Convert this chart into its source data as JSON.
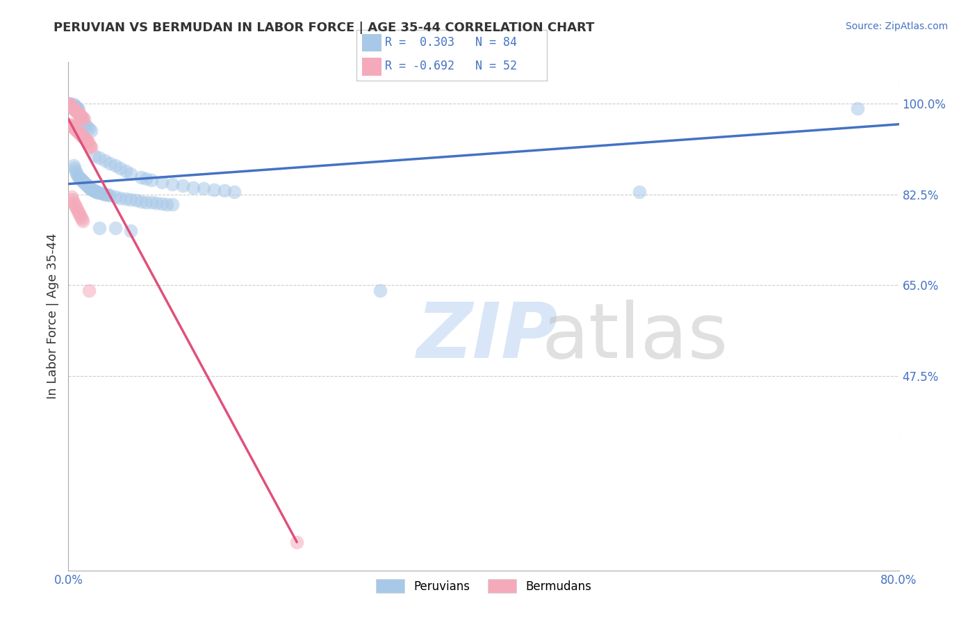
{
  "title": "PERUVIAN VS BERMUDAN IN LABOR FORCE | AGE 35-44 CORRELATION CHART",
  "source_text": "Source: ZipAtlas.com",
  "ylabel_label": "In Labor Force | Age 35-44",
  "blue_color": "#A8C8E8",
  "pink_color": "#F4AABB",
  "blue_line_color": "#4472C4",
  "pink_line_color": "#E0507A",
  "xlim": [
    0.0,
    0.8
  ],
  "ylim": [
    0.1,
    1.08
  ],
  "xtick_vals": [
    0.0,
    0.8
  ],
  "xtick_labels": [
    "0.0%",
    "80.0%"
  ],
  "ytick_vals": [
    0.475,
    0.65,
    0.825,
    1.0
  ],
  "ytick_labels": [
    "47.5%",
    "65.0%",
    "82.5%",
    "100.0%"
  ],
  "blue_line_x": [
    0.0,
    0.8
  ],
  "blue_line_y": [
    0.845,
    0.96
  ],
  "pink_line_x": [
    0.0,
    0.22
  ],
  "pink_line_y": [
    0.97,
    0.155
  ],
  "blue_scatter": [
    [
      0.001,
      1.0
    ],
    [
      0.002,
      0.998
    ],
    [
      0.003,
      0.995
    ],
    [
      0.004,
      0.993
    ],
    [
      0.005,
      0.998
    ],
    [
      0.006,
      0.996
    ],
    [
      0.007,
      0.994
    ],
    [
      0.008,
      0.992
    ],
    [
      0.009,
      0.99
    ],
    [
      0.01,
      0.988
    ],
    [
      0.012,
      0.97
    ],
    [
      0.014,
      0.965
    ],
    [
      0.016,
      0.96
    ],
    [
      0.018,
      0.955
    ],
    [
      0.02,
      0.952
    ],
    [
      0.022,
      0.948
    ],
    [
      0.005,
      0.88
    ],
    [
      0.006,
      0.875
    ],
    [
      0.007,
      0.87
    ],
    [
      0.008,
      0.865
    ],
    [
      0.009,
      0.86
    ],
    [
      0.01,
      0.858
    ],
    [
      0.011,
      0.856
    ],
    [
      0.012,
      0.854
    ],
    [
      0.013,
      0.852
    ],
    [
      0.014,
      0.85
    ],
    [
      0.015,
      0.848
    ],
    [
      0.016,
      0.846
    ],
    [
      0.017,
      0.844
    ],
    [
      0.018,
      0.842
    ],
    [
      0.019,
      0.84
    ],
    [
      0.02,
      0.838
    ],
    [
      0.021,
      0.836
    ],
    [
      0.022,
      0.835
    ],
    [
      0.023,
      0.834
    ],
    [
      0.024,
      0.833
    ],
    [
      0.025,
      0.832
    ],
    [
      0.026,
      0.831
    ],
    [
      0.027,
      0.83
    ],
    [
      0.028,
      0.829
    ],
    [
      0.03,
      0.828
    ],
    [
      0.032,
      0.827
    ],
    [
      0.034,
      0.826
    ],
    [
      0.036,
      0.825
    ],
    [
      0.038,
      0.824
    ],
    [
      0.04,
      0.823
    ],
    [
      0.045,
      0.82
    ],
    [
      0.05,
      0.818
    ],
    [
      0.055,
      0.816
    ],
    [
      0.06,
      0.815
    ],
    [
      0.065,
      0.813
    ],
    [
      0.07,
      0.811
    ],
    [
      0.075,
      0.81
    ],
    [
      0.08,
      0.809
    ],
    [
      0.085,
      0.808
    ],
    [
      0.09,
      0.807
    ],
    [
      0.095,
      0.806
    ],
    [
      0.1,
      0.805
    ],
    [
      0.025,
      0.9
    ],
    [
      0.03,
      0.895
    ],
    [
      0.035,
      0.89
    ],
    [
      0.04,
      0.885
    ],
    [
      0.045,
      0.88
    ],
    [
      0.05,
      0.875
    ],
    [
      0.055,
      0.87
    ],
    [
      0.06,
      0.865
    ],
    [
      0.07,
      0.858
    ],
    [
      0.075,
      0.855
    ],
    [
      0.08,
      0.852
    ],
    [
      0.09,
      0.848
    ],
    [
      0.1,
      0.844
    ],
    [
      0.11,
      0.842
    ],
    [
      0.12,
      0.838
    ],
    [
      0.13,
      0.836
    ],
    [
      0.14,
      0.834
    ],
    [
      0.15,
      0.832
    ],
    [
      0.16,
      0.83
    ],
    [
      0.03,
      0.76
    ],
    [
      0.045,
      0.76
    ],
    [
      0.06,
      0.755
    ],
    [
      0.3,
      0.64
    ],
    [
      0.55,
      0.83
    ],
    [
      0.76,
      0.99
    ]
  ],
  "pink_scatter": [
    [
      0.001,
      1.0
    ],
    [
      0.002,
      0.998
    ],
    [
      0.003,
      0.995
    ],
    [
      0.004,
      0.992
    ],
    [
      0.005,
      0.99
    ],
    [
      0.006,
      0.988
    ],
    [
      0.007,
      0.986
    ],
    [
      0.008,
      0.984
    ],
    [
      0.009,
      0.982
    ],
    [
      0.01,
      0.98
    ],
    [
      0.011,
      0.978
    ],
    [
      0.012,
      0.976
    ],
    [
      0.013,
      0.974
    ],
    [
      0.014,
      0.972
    ],
    [
      0.015,
      0.97
    ],
    [
      0.002,
      0.96
    ],
    [
      0.003,
      0.958
    ],
    [
      0.004,
      0.956
    ],
    [
      0.005,
      0.954
    ],
    [
      0.006,
      0.952
    ],
    [
      0.007,
      0.95
    ],
    [
      0.008,
      0.948
    ],
    [
      0.009,
      0.946
    ],
    [
      0.01,
      0.944
    ],
    [
      0.011,
      0.942
    ],
    [
      0.012,
      0.94
    ],
    [
      0.013,
      0.938
    ],
    [
      0.014,
      0.936
    ],
    [
      0.015,
      0.934
    ],
    [
      0.016,
      0.932
    ],
    [
      0.017,
      0.93
    ],
    [
      0.018,
      0.928
    ],
    [
      0.019,
      0.926
    ],
    [
      0.02,
      0.92
    ],
    [
      0.021,
      0.918
    ],
    [
      0.022,
      0.916
    ],
    [
      0.003,
      0.82
    ],
    [
      0.004,
      0.815
    ],
    [
      0.005,
      0.81
    ],
    [
      0.006,
      0.806
    ],
    [
      0.007,
      0.802
    ],
    [
      0.008,
      0.798
    ],
    [
      0.009,
      0.794
    ],
    [
      0.01,
      0.79
    ],
    [
      0.011,
      0.786
    ],
    [
      0.012,
      0.782
    ],
    [
      0.013,
      0.778
    ],
    [
      0.014,
      0.774
    ],
    [
      0.02,
      0.64
    ],
    [
      0.22,
      0.155
    ]
  ]
}
